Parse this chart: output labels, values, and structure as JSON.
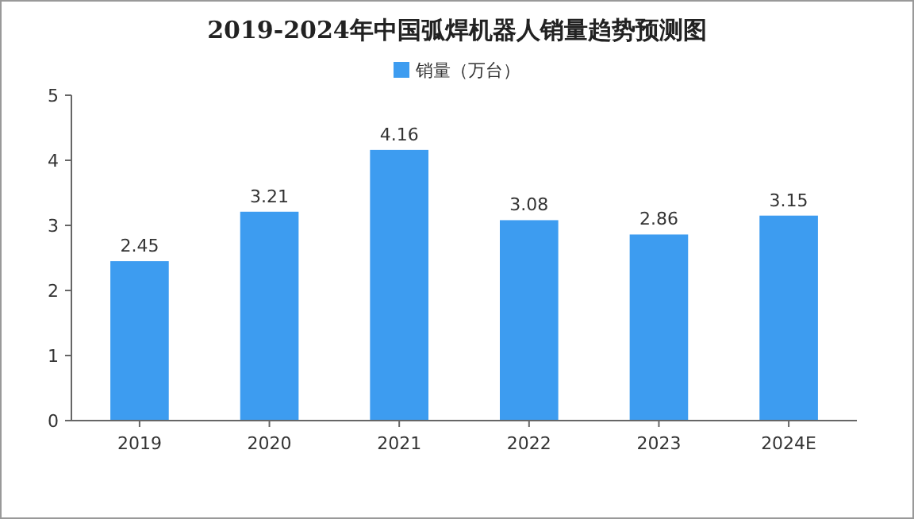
{
  "chart_data": {
    "type": "bar",
    "title": "2019-2024年中国弧焊机器人销量趋势预测图",
    "categories": [
      "2019",
      "2020",
      "2021",
      "2022",
      "2023",
      "2024E"
    ],
    "series": [
      {
        "name": "销量（万台）",
        "color": "#3d9cf0",
        "values": [
          2.45,
          3.21,
          4.16,
          3.08,
          2.86,
          3.15
        ]
      }
    ],
    "ylim": [
      0,
      5
    ],
    "yticks": [
      0,
      1,
      2,
      3,
      4,
      5
    ],
    "grid": false,
    "legend": "top",
    "data_labels": true
  }
}
